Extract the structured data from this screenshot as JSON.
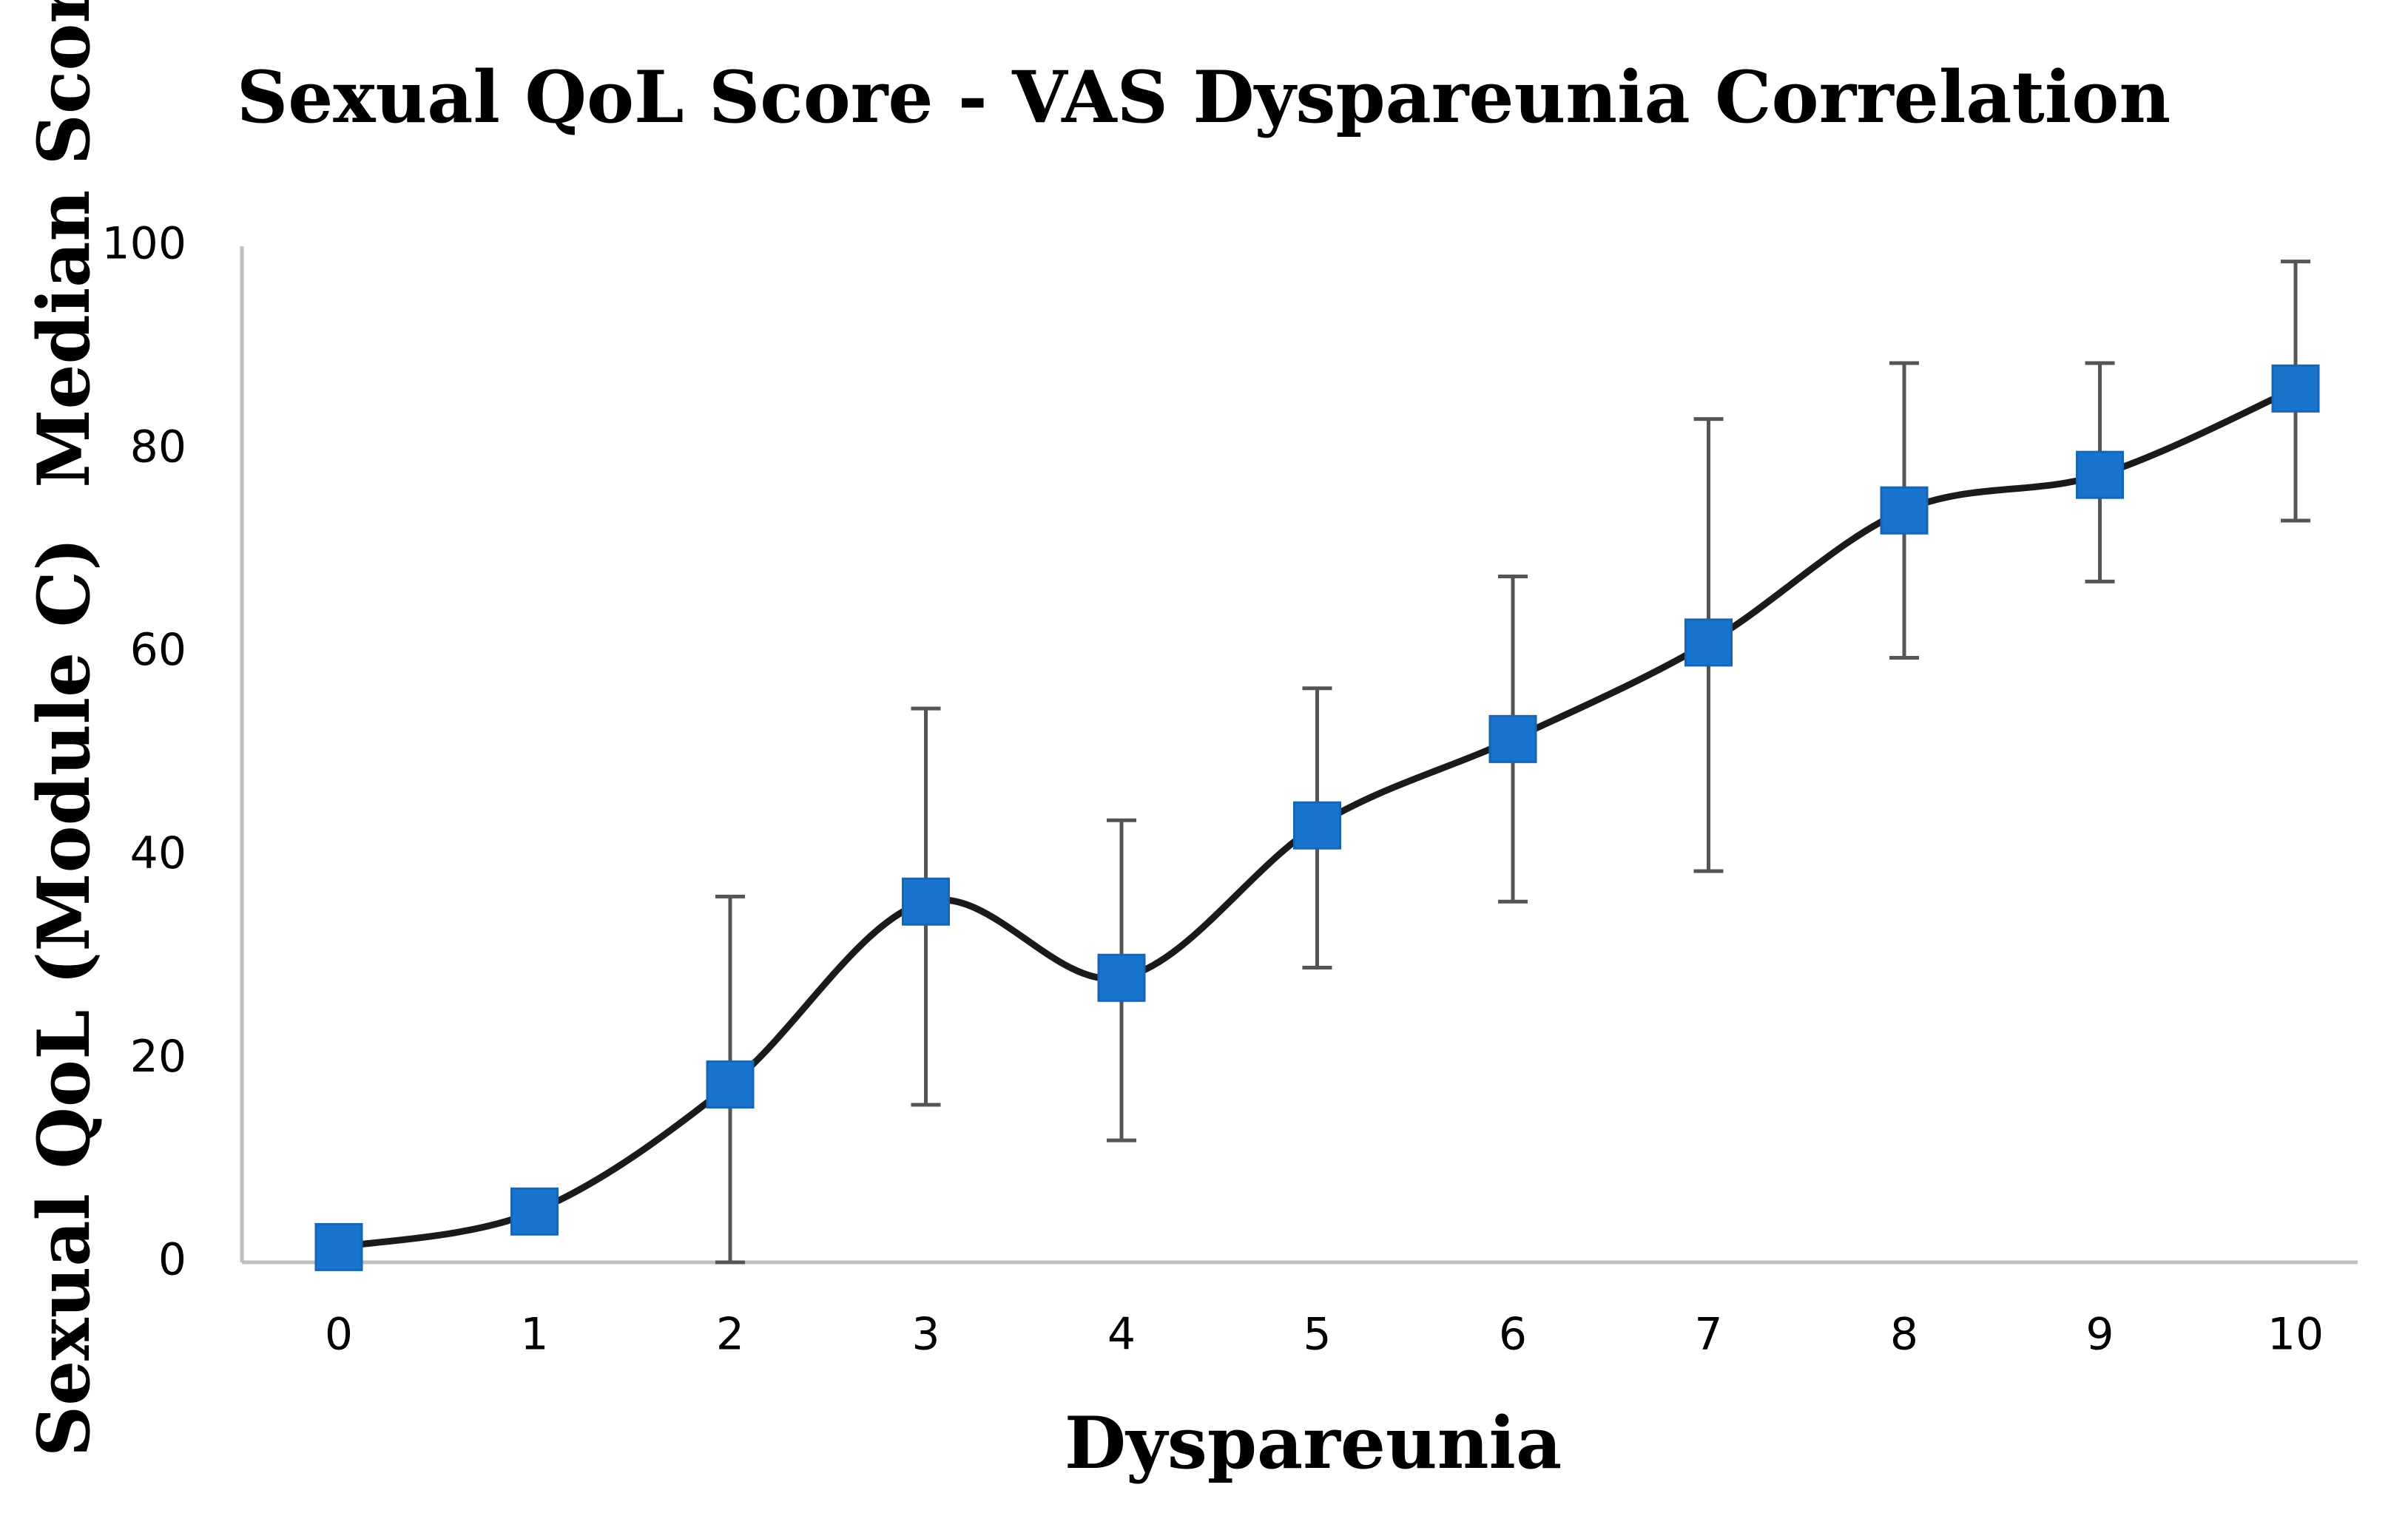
{
  "chart_data": {
    "type": "line",
    "title": "Sexual QoL Score - VAS Dyspareunia Correlation",
    "xlabel": "Dyspareunia",
    "ylabel": "Sexual QoL (Module C)  Median Score",
    "categories": [
      "0",
      "1",
      "2",
      "3",
      "4",
      "5",
      "6",
      "7",
      "8",
      "9",
      "10"
    ],
    "ylim": [
      0,
      100
    ],
    "yticks": [
      "0",
      "20",
      "40",
      "60",
      "80",
      "100"
    ],
    "grid": false,
    "series": [
      {
        "name": "Median Score",
        "color": "#1874cd",
        "line_color": "#1a1a1a",
        "marker": "square",
        "smooth": true,
        "values": [
          1.5,
          5,
          17.5,
          35.5,
          28,
          43,
          51.5,
          61,
          74,
          77.5,
          86
        ],
        "error_low": [
          null,
          null,
          0,
          15.5,
          12,
          29,
          35.5,
          38.5,
          59.5,
          67,
          73
        ],
        "error_high": [
          null,
          null,
          36,
          54.5,
          43.5,
          56.5,
          67.5,
          83,
          88.5,
          88.5,
          98.5
        ]
      }
    ]
  }
}
